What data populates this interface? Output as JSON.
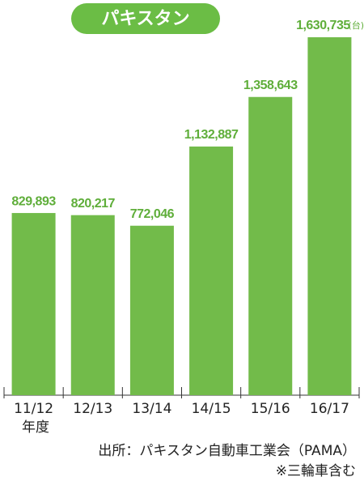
{
  "chart_data": {
    "type": "bar",
    "title": "パキスタン",
    "categories": [
      "11/12",
      "12/13",
      "13/14",
      "14/15",
      "15/16",
      "16/17"
    ],
    "xlabel": "年度",
    "values": [
      829893,
      820217,
      772046,
      1132887,
      1358643,
      1630735
    ],
    "value_labels": [
      "829,893",
      "820,217",
      "772,046",
      "1,132,887",
      "1,358,643",
      "1,630,735"
    ],
    "unit": "(台)",
    "color": "#72bb4a",
    "label_color": "#5fae3a",
    "source": "出所：パキスタン自動車工業会（PAMA）",
    "note": "※三輪車含む"
  }
}
